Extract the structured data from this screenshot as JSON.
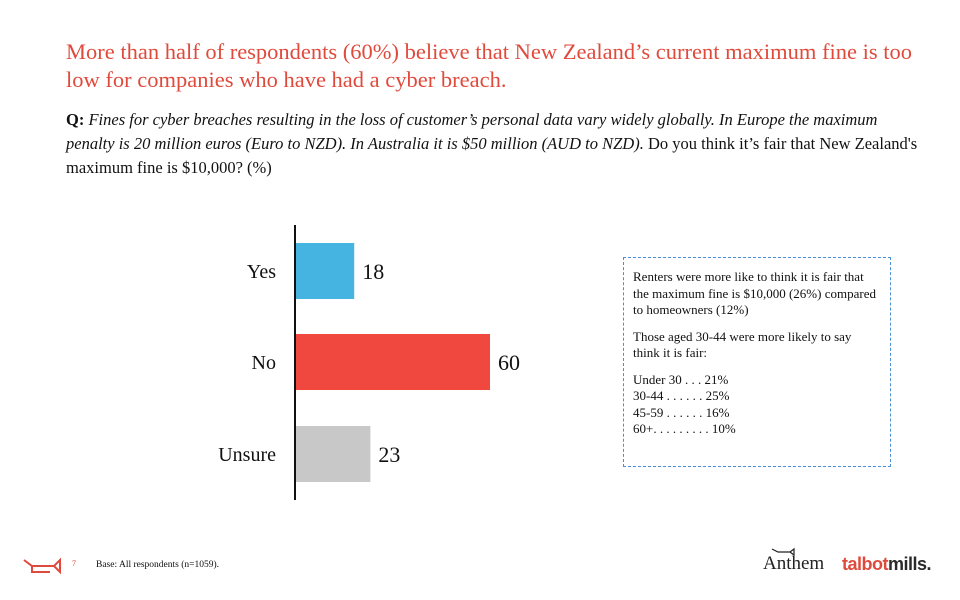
{
  "headline": "More than half of respondents (60%) believe that New Zealand’s current maximum fine is too low for companies who have had a cyber breach.",
  "question": {
    "label": "Q:",
    "italic": " Fines for cyber breaches resulting in the loss of customer’s personal data vary widely globally. In Europe the maximum penalty is 20 million euros (Euro to NZD). In Australia it is $50 million (AUD to NZD).",
    "plain": " Do you think it’s fair that New Zealand's maximum fine is $10,000? (%)"
  },
  "chart_data": {
    "type": "bar",
    "orientation": "horizontal",
    "categories": [
      "Yes",
      "No",
      "Unsure"
    ],
    "values": [
      18,
      60,
      23
    ],
    "colors": [
      "#45b4e0",
      "#f0483e",
      "#c8c8c8"
    ],
    "xlim": [
      0,
      60
    ],
    "grid": false,
    "legend": "none"
  },
  "callout": {
    "para1": "Renters were more like to think it is fair that the maximum fine is $10,000 (26%) compared to homeowners (12%)",
    "para2": "Those aged 30-44 were more likely to say think it is fair:",
    "ages": [
      "Under 30 . . . 21%",
      "30-44 . . . . . . 25%",
      "45-59 . . . . . . 16%",
      "60+. . . . . . . . . 10%"
    ]
  },
  "footer": {
    "page": "7",
    "base": "Base: All respondents (n=1059).",
    "brand1": "Anthem",
    "brand2a": "talbot",
    "brand2b": "mills."
  },
  "colors": {
    "accent": "#e04a3c",
    "callout_border": "#4a8fd4"
  }
}
